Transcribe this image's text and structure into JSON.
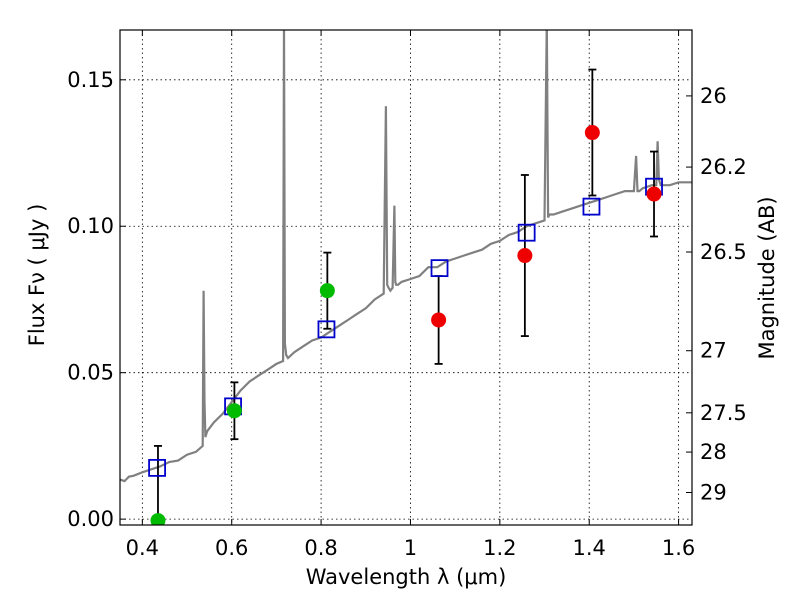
{
  "chart_data": {
    "type": "scatter",
    "xlabel": "Wavelength  λ (μm)",
    "ylabel": "Flux  Fν  ( μJy )",
    "y2label": "Magnitude (AB)",
    "xlim": [
      0.35,
      1.63
    ],
    "ylim": [
      -0.002,
      0.167
    ],
    "grid": true,
    "x_ticks": [
      0.4,
      0.6,
      0.8,
      1.0,
      1.2,
      1.4,
      1.6
    ],
    "x_tick_labels": [
      "0.4",
      "0.6",
      "0.8",
      "1",
      "1.2",
      "1.4",
      "1.6"
    ],
    "y_ticks": [
      0.0,
      0.05,
      0.1,
      0.15
    ],
    "y_tick_labels": [
      "0.00",
      "0.05",
      "0.10",
      "0.15"
    ],
    "y2_tick_labels": [
      {
        "label": "26",
        "flux": 0.1445
      },
      {
        "label": "26.2",
        "flux": 0.1202
      },
      {
        "label": "26.5",
        "flux": 0.0912
      },
      {
        "label": "27",
        "flux": 0.0575
      },
      {
        "label": "27.5",
        "flux": 0.0363
      },
      {
        "label": "28",
        "flux": 0.0229
      },
      {
        "label": "29",
        "flux": 0.0091
      }
    ],
    "colors": {
      "model": "#808080",
      "optical": "#00bb00",
      "nir": "#ee0000",
      "model_photometry": "#0000cc",
      "errorbar": "#000000"
    },
    "model_spectrum": {
      "x": [
        0.35,
        0.36,
        0.37,
        0.38,
        0.4,
        0.42,
        0.44,
        0.46,
        0.48,
        0.5,
        0.52,
        0.535,
        0.537,
        0.539,
        0.541,
        0.545,
        0.56,
        0.58,
        0.6,
        0.62,
        0.64,
        0.66,
        0.68,
        0.7,
        0.715,
        0.717,
        0.719,
        0.722,
        0.726,
        0.74,
        0.76,
        0.78,
        0.8,
        0.82,
        0.84,
        0.86,
        0.88,
        0.9,
        0.92,
        0.94,
        0.945,
        0.948,
        0.951,
        0.955,
        0.96,
        0.964,
        0.966,
        0.968,
        0.972,
        0.98,
        1.0,
        1.02,
        1.04,
        1.06,
        1.08,
        1.1,
        1.12,
        1.14,
        1.16,
        1.18,
        1.2,
        1.22,
        1.24,
        1.26,
        1.28,
        1.3,
        1.305,
        1.308,
        1.311,
        1.315,
        1.32,
        1.34,
        1.36,
        1.38,
        1.4,
        1.42,
        1.44,
        1.46,
        1.48,
        1.5,
        1.505,
        1.508,
        1.512,
        1.52,
        1.54,
        1.55,
        1.553,
        1.556,
        1.56,
        1.58,
        1.6,
        1.62,
        1.63
      ],
      "y": [
        0.0135,
        0.013,
        0.0145,
        0.0148,
        0.016,
        0.017,
        0.018,
        0.0195,
        0.02,
        0.022,
        0.023,
        0.025,
        0.078,
        0.04,
        0.028,
        0.03,
        0.033,
        0.036,
        0.04,
        0.044,
        0.047,
        0.049,
        0.051,
        0.053,
        0.054,
        0.17,
        0.06,
        0.056,
        0.055,
        0.057,
        0.059,
        0.061,
        0.062,
        0.064,
        0.066,
        0.068,
        0.07,
        0.072,
        0.075,
        0.077,
        0.141,
        0.08,
        0.079,
        0.078,
        0.079,
        0.107,
        0.081,
        0.08,
        0.08,
        0.081,
        0.082,
        0.083,
        0.086,
        0.086,
        0.088,
        0.089,
        0.09,
        0.091,
        0.092,
        0.094,
        0.095,
        0.097,
        0.098,
        0.1,
        0.101,
        0.102,
        0.17,
        0.103,
        0.104,
        0.104,
        0.104,
        0.105,
        0.106,
        0.107,
        0.108,
        0.109,
        0.11,
        0.111,
        0.112,
        0.112,
        0.124,
        0.112,
        0.112,
        0.113,
        0.114,
        0.114,
        0.129,
        0.116,
        0.114,
        0.114,
        0.115,
        0.115,
        0.115
      ]
    },
    "observed": [
      {
        "x": 0.435,
        "y": -0.0005,
        "yerr": 0.0255,
        "group": "optical"
      },
      {
        "x": 0.606,
        "y": 0.037,
        "yerr": 0.0097,
        "group": "optical"
      },
      {
        "x": 0.814,
        "y": 0.078,
        "yerr": 0.013,
        "group": "optical"
      },
      {
        "x": 1.063,
        "y": 0.068,
        "yerr": 0.015,
        "group": "nir"
      },
      {
        "x": 1.256,
        "y": 0.09,
        "yerr": 0.0275,
        "group": "nir"
      },
      {
        "x": 1.407,
        "y": 0.132,
        "yerr": 0.0215,
        "group": "nir"
      },
      {
        "x": 1.545,
        "y": 0.111,
        "yerr": 0.0145,
        "group": "nir"
      }
    ],
    "model_photometry": {
      "x": [
        0.433,
        0.603,
        0.812,
        1.065,
        1.26,
        1.405,
        1.545
      ],
      "y": [
        0.0175,
        0.0385,
        0.0648,
        0.0857,
        0.0978,
        0.1067,
        0.1135
      ]
    }
  }
}
